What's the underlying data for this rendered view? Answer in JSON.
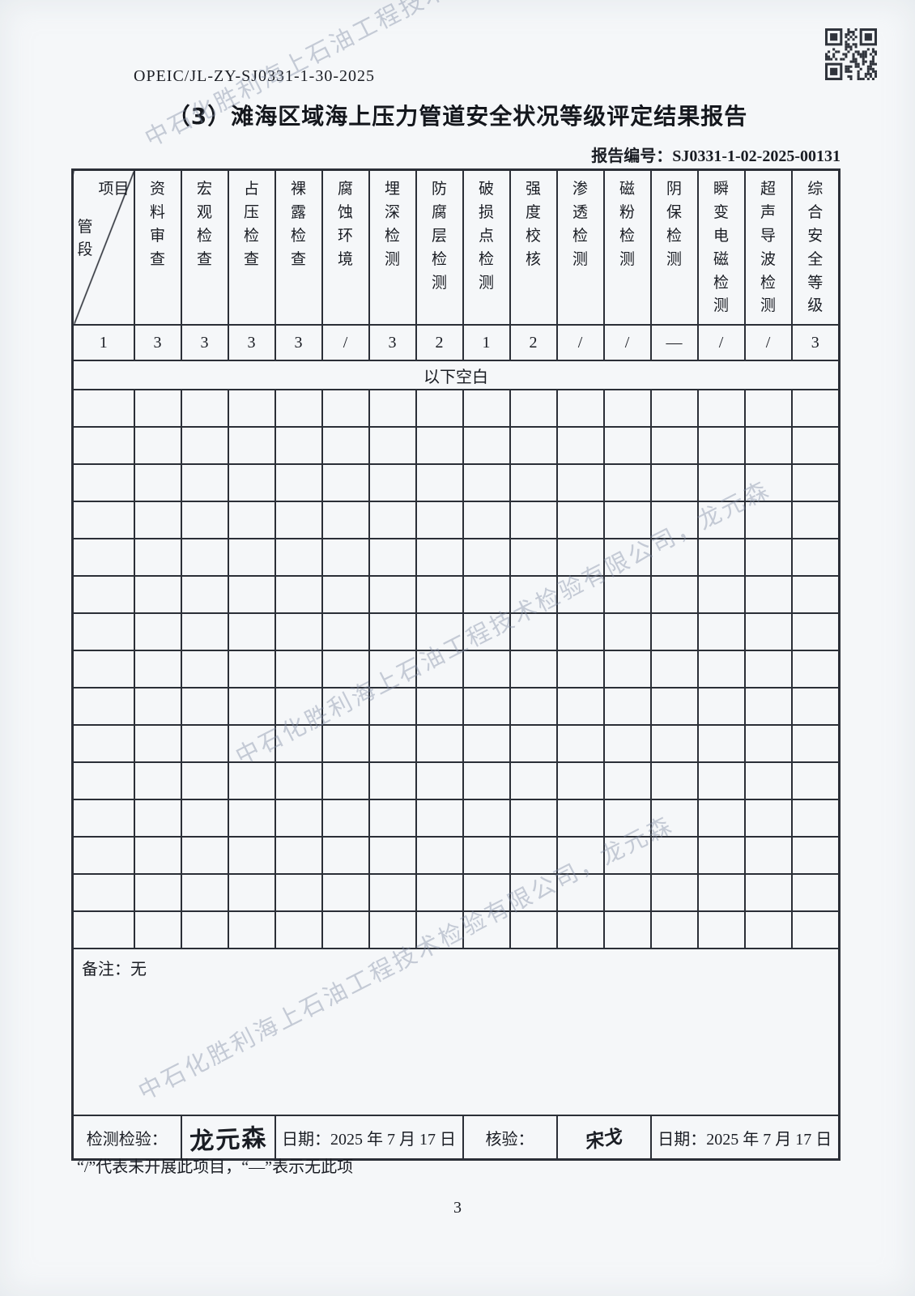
{
  "page": {
    "doc_code": "OPEIC/JL-ZY-SJ0331-1-30-2025",
    "title": "（3）滩海区域海上压力管道安全状况等级评定结果报告",
    "report_no_label": "报告编号：",
    "report_no": "SJ0331-1-02-2025-00131",
    "footnote": "“/”代表未开展此项目，“—”表示无此项",
    "page_number": "3",
    "watermark": "中石化胜利海上石油工程技术检验有限公司，龙元森"
  },
  "table": {
    "corner": {
      "top": "项目",
      "bottom": "管段"
    },
    "columns": [
      "资料审查",
      "宏观检查",
      "占压检查",
      "裸露检查",
      "腐蚀环境",
      "埋深检测",
      "防腐层检测",
      "破损点检测",
      "强度校核",
      "渗透检测",
      "磁粉检测",
      "阴保检测",
      "瞬变电磁检测",
      "超声导波检测",
      "综合安全等级"
    ],
    "rows": [
      {
        "segment": "1",
        "values": [
          "3",
          "3",
          "3",
          "3",
          "/",
          "3",
          "2",
          "1",
          "2",
          "/",
          "/",
          "—",
          "/",
          "/",
          "3"
        ]
      }
    ],
    "blank_note": "以下空白",
    "empty_row_count": 15,
    "remark_label": "备注：",
    "remark_value": "无"
  },
  "signoff": {
    "inspect_label": "检测检验：",
    "inspect_signature": "龙元森",
    "inspect_date_text": "日期：2025 年 7 月 17 日",
    "verify_label": "核验：",
    "verify_signature": "宋戈",
    "verify_date_text": "日期：2025 年 7 月 17 日"
  }
}
